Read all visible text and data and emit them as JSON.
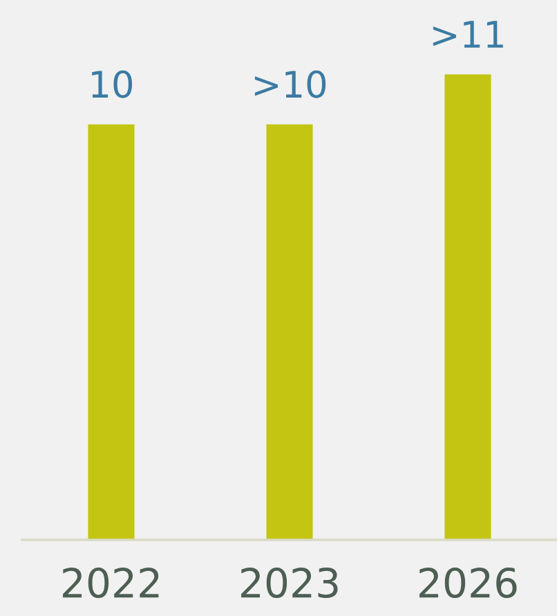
{
  "chart_data": {
    "type": "bar",
    "categories": [
      "2022",
      "2023",
      "2026"
    ],
    "values": [
      10,
      10,
      11.2
    ],
    "value_labels": [
      "10",
      ">10",
      ">11"
    ],
    "color": "#c2c511",
    "grid": false,
    "legend": false
  }
}
